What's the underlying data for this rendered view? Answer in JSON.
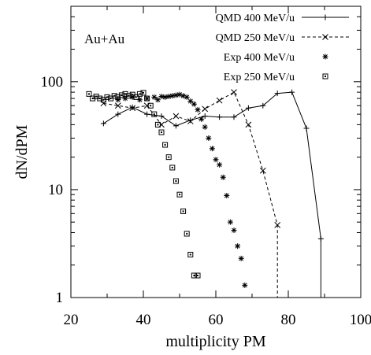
{
  "chart_data": {
    "type": "scatter",
    "xlabel": "multiplicity PM",
    "ylabel": "dN/dPM",
    "xlim": [
      20,
      100
    ],
    "ylim": [
      1,
      500
    ],
    "y_scale": "log",
    "grid": false,
    "legend_position": "top-right",
    "annotation": "Au+Au",
    "x_ticks": [
      20,
      40,
      60,
      80,
      100
    ],
    "x_tick_labels": [
      "20",
      "40",
      "60",
      "80",
      "100"
    ],
    "y_ticks": [
      1,
      10,
      100
    ],
    "y_tick_labels": [
      "1",
      "10",
      "100"
    ],
    "series": [
      {
        "name": "QMD 400 MeV/u",
        "style": "solid-line",
        "marker": "plus",
        "x": [
          29,
          33,
          37,
          41,
          45,
          49,
          53,
          57,
          61,
          65,
          69,
          73,
          77,
          81,
          85,
          89,
          89
        ],
        "y": [
          41,
          50,
          58,
          50,
          48,
          39,
          44,
          48,
          47,
          47,
          57,
          60,
          78,
          80,
          37,
          3.5,
          1
        ]
      },
      {
        "name": "QMD 250 MeV/u",
        "style": "dashed-line",
        "marker": "x",
        "x": [
          29,
          33,
          37,
          41,
          45,
          49,
          53,
          57,
          61,
          65,
          69,
          73,
          77,
          77
        ],
        "y": [
          63,
          60,
          57,
          60,
          40,
          48,
          43,
          56,
          67,
          80,
          40,
          15,
          4.7,
          1
        ]
      },
      {
        "name": "Exp 400 MeV/u",
        "style": "points",
        "marker": "asterisk",
        "x": [
          33,
          35,
          37,
          39,
          41,
          43,
          44,
          45,
          46,
          47,
          48,
          49,
          50,
          51,
          52,
          53,
          54,
          55,
          56,
          57,
          58,
          59,
          60,
          61,
          62,
          63,
          64,
          65,
          66,
          67,
          68
        ],
        "y": [
          68,
          70,
          72,
          68,
          70,
          72,
          68,
          73,
          72,
          73,
          74,
          75,
          76,
          74,
          72,
          66,
          62,
          55,
          45,
          38,
          30,
          24,
          19,
          17,
          13,
          8.8,
          5,
          4.2,
          3,
          2.3,
          1.3
        ]
      },
      {
        "name": "Exp 250 MeV/u",
        "style": "points",
        "marker": "square",
        "x": [
          25,
          26,
          27,
          28,
          29,
          30,
          31,
          32,
          33,
          34,
          35,
          36,
          37,
          38,
          39,
          40,
          41,
          42,
          43,
          44,
          45,
          46,
          47,
          48,
          49,
          50,
          51,
          52,
          53,
          54,
          55
        ],
        "y": [
          77,
          70,
          73,
          70,
          68,
          72,
          70,
          74,
          72,
          75,
          77,
          74,
          76,
          72,
          77,
          79,
          70,
          60,
          50,
          40,
          34,
          26,
          20,
          16,
          12,
          9,
          6.3,
          3.9,
          2.5,
          1.6,
          1.6
        ]
      }
    ]
  },
  "colors": {
    "axis": "#000000",
    "series": "#000000",
    "background": "#ffffff"
  }
}
